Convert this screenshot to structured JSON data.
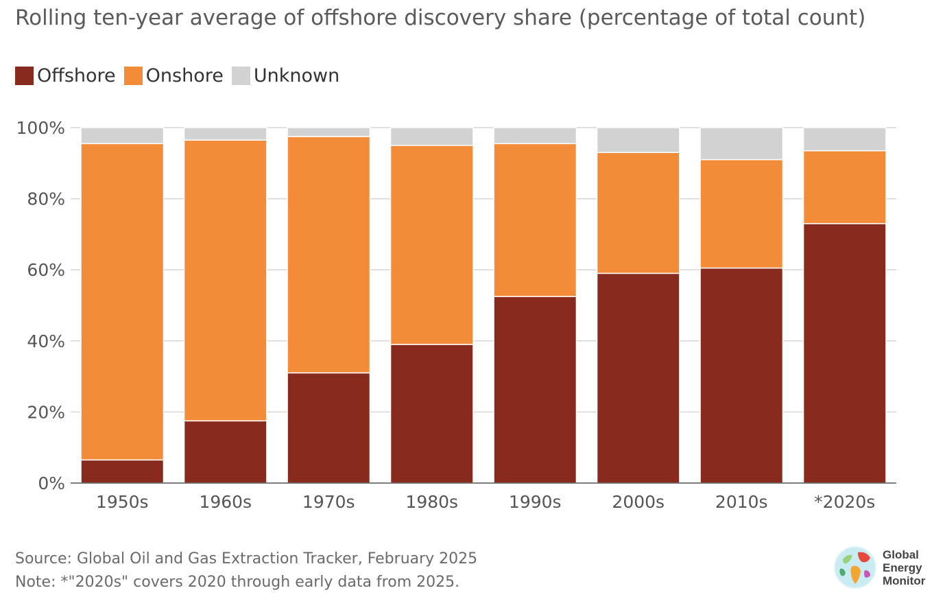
{
  "chart_data": {
    "type": "bar",
    "stacked": true,
    "title": "Rolling ten-year average of offshore discovery share (percentage of total count)",
    "categories": [
      "1950s",
      "1960s",
      "1970s",
      "1980s",
      "1990s",
      "2000s",
      "2010s",
      "*2020s"
    ],
    "series": [
      {
        "name": "Offshore",
        "color": "#882a1e",
        "values": [
          6.5,
          17.5,
          31,
          39,
          52.5,
          59,
          60.5,
          73
        ]
      },
      {
        "name": "Onshore",
        "color": "#f28c38",
        "values": [
          89,
          79,
          66.5,
          56,
          43,
          34,
          30.5,
          20.5
        ]
      },
      {
        "name": "Unknown",
        "color": "#d2d2d2",
        "values": [
          4.5,
          3.5,
          2.5,
          5,
          4.5,
          7,
          9,
          6.5
        ]
      }
    ],
    "ylim": [
      0,
      100
    ],
    "yticks": [
      "0%",
      "20%",
      "40%",
      "60%",
      "80%",
      "100%"
    ],
    "ytick_values": [
      0,
      20,
      40,
      60,
      80,
      100
    ],
    "grid": true,
    "legend_position": "top-left"
  },
  "footer": {
    "source": "Source: Global Oil and Gas Extraction Tracker, February 2025",
    "note": "Note: *\"2020s\" covers 2020 through early data from 2025."
  },
  "logo": {
    "line1": "Global",
    "line2": "Energy",
    "line3": "Monitor"
  }
}
